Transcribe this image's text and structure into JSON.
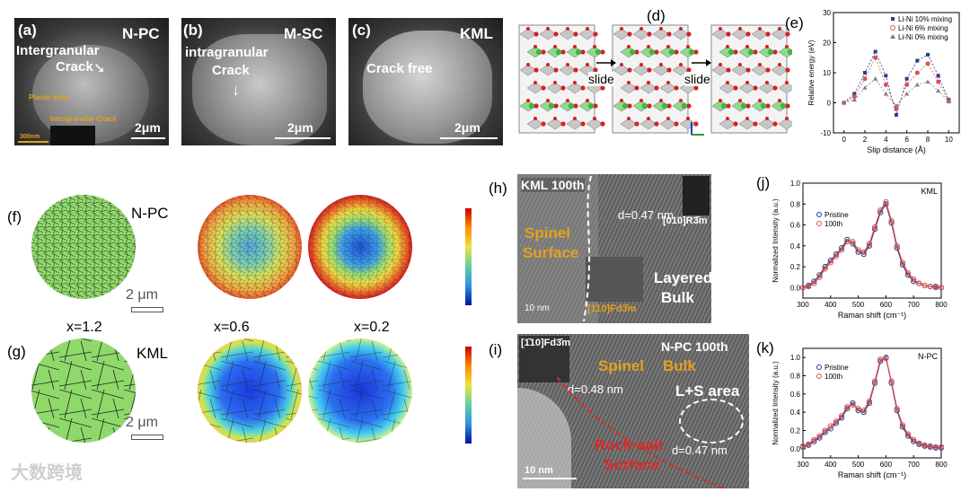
{
  "panel_a": {
    "letter": "(a)",
    "tag": "N-PC",
    "crack": "Intergranular",
    "crack2": "Crack",
    "planar": "Planar slide",
    "intra": "Intragranular Crack",
    "scale_small": "300nm",
    "scale": "2μm"
  },
  "panel_b": {
    "letter": "(b)",
    "tag": "M-SC",
    "crack": "intragranular",
    "crack2": "Crack",
    "scale": "2μm"
  },
  "panel_c": {
    "letter": "(c)",
    "tag": "KML",
    "crack": "Crack free",
    "scale": "2μm"
  },
  "panel_d": {
    "letter": "(d)",
    "slide1": "slide",
    "slide2": "slide"
  },
  "panel_e": {
    "letter": "(e)",
    "ylabel": "Relative energy (eV)",
    "xlabel": "Slip distance (Å)"
  },
  "panel_f": {
    "letter": "(f)",
    "tag": "N-PC",
    "scale": "2 μm"
  },
  "panel_g": {
    "letter": "(g)",
    "tag": "KML",
    "scale": "2 μm"
  },
  "x_labels": [
    "x=1.2",
    "x=0.6",
    "x=0.2"
  ],
  "panel_h": {
    "letter": "(h)",
    "title": "KML 100th",
    "spinel1": "Spinel",
    "spinel2": "Surface",
    "layered1": "Layered",
    "layered2": "Bulk",
    "d": "d=0.47 nm",
    "fft1": "[010]R3̄m",
    "fft2": "[110]Fd3̄m",
    "scale": "10 nm"
  },
  "panel_i": {
    "letter": "(i)",
    "title": "N-PC 100th",
    "spinel": "Spinel",
    "bulk": "Bulk",
    "ls": "L+S area",
    "d1": "d=0.48 nm",
    "d2": "d=0.47 nm",
    "rock1": "Rock-salt",
    "rock2": "Surface",
    "fft": "[1̄10]Fd3̄m",
    "scale": "10 nm"
  },
  "panel_j": {
    "letter": "(j)",
    "tag": "KML",
    "ylabel": "Normalized Intensity (a.u.)",
    "xlabel": "Raman shift (cm⁻¹)"
  },
  "panel_k": {
    "letter": "(k)",
    "tag": "N-PC",
    "ylabel": "Normalized Intensity (a.u.)",
    "xlabel": "Raman shift (cm⁻¹)"
  },
  "watermark": "大数跨境",
  "chart_data": [
    {
      "id": "e",
      "type": "line",
      "xlabel": "Slip distance (Å)",
      "ylabel": "Relative energy (eV)",
      "xlim": [
        -1,
        11
      ],
      "ylim": [
        -10,
        30
      ],
      "xticks": [
        0,
        2,
        4,
        6,
        8,
        10
      ],
      "yticks": [
        -10,
        0,
        10,
        20,
        30
      ],
      "legend_position": "top-right",
      "x": [
        0,
        1,
        2,
        3,
        4,
        5,
        6,
        7,
        8,
        9,
        10
      ],
      "series": [
        {
          "name": "Li-Ni 10% mixing",
          "color": "#2b3b8f",
          "marker": "square",
          "values": [
            0,
            3,
            10,
            17,
            9,
            -4,
            8,
            14,
            16,
            9,
            1
          ]
        },
        {
          "name": "Li-Ni 6% mixing",
          "color": "#d9534f",
          "marker": "circle",
          "values": [
            0,
            2,
            8,
            15,
            6,
            -2,
            6,
            10,
            13,
            7,
            0.5
          ]
        },
        {
          "name": "Li-Ni 0% mixing",
          "color": "#7f7f7f",
          "marker": "triangle",
          "values": [
            0,
            1,
            5,
            8,
            3,
            -1,
            3,
            6,
            7,
            4,
            0.5
          ]
        }
      ]
    },
    {
      "id": "j",
      "type": "scatter",
      "tag": "KML",
      "xlabel": "Raman shift (cm⁻¹)",
      "ylabel": "Normalized Intensity (a.u.)",
      "xlim": [
        300,
        800
      ],
      "ylim": [
        -0.1,
        1.0
      ],
      "xticks": [
        300,
        400,
        500,
        600,
        700,
        800
      ],
      "yticks": [
        0.0,
        0.2,
        0.4,
        0.6,
        0.8,
        1.0
      ],
      "legend_position": "top-left",
      "x": [
        300,
        320,
        340,
        360,
        380,
        400,
        420,
        440,
        460,
        480,
        500,
        520,
        540,
        560,
        580,
        600,
        620,
        640,
        660,
        680,
        700,
        720,
        740,
        760,
        780,
        800
      ],
      "series": [
        {
          "name": "Pristine",
          "color": "#2b3b8f",
          "values": [
            0.0,
            0.02,
            0.06,
            0.12,
            0.2,
            0.26,
            0.32,
            0.38,
            0.46,
            0.42,
            0.34,
            0.32,
            0.4,
            0.56,
            0.72,
            0.8,
            0.62,
            0.38,
            0.22,
            0.12,
            0.06,
            0.04,
            0.02,
            0.01,
            0.01,
            0.0
          ]
        },
        {
          "name": "100th",
          "color": "#d9534f",
          "values": [
            0.0,
            0.01,
            0.04,
            0.1,
            0.18,
            0.24,
            0.3,
            0.36,
            0.44,
            0.44,
            0.36,
            0.34,
            0.42,
            0.58,
            0.74,
            0.82,
            0.64,
            0.4,
            0.24,
            0.14,
            0.08,
            0.04,
            0.02,
            0.01,
            0.0,
            0.0
          ]
        }
      ]
    },
    {
      "id": "k",
      "type": "scatter",
      "tag": "N-PC",
      "xlabel": "Raman shift (cm⁻¹)",
      "ylabel": "Normalized Intensity (a.u.)",
      "xlim": [
        300,
        800
      ],
      "ylim": [
        -0.1,
        1.1
      ],
      "xticks": [
        300,
        400,
        500,
        600,
        700,
        800
      ],
      "yticks": [
        0.0,
        0.2,
        0.4,
        0.6,
        0.8,
        1.0
      ],
      "legend_position": "top-left",
      "x": [
        300,
        320,
        340,
        360,
        380,
        400,
        420,
        440,
        460,
        480,
        500,
        520,
        540,
        560,
        580,
        600,
        620,
        640,
        660,
        680,
        700,
        720,
        740,
        760,
        780,
        800
      ],
      "series": [
        {
          "name": "Pristine",
          "color": "#2b3b8f",
          "values": [
            0.02,
            0.04,
            0.08,
            0.12,
            0.18,
            0.22,
            0.28,
            0.34,
            0.44,
            0.5,
            0.42,
            0.4,
            0.5,
            0.72,
            0.96,
            1.0,
            0.72,
            0.42,
            0.24,
            0.14,
            0.08,
            0.05,
            0.03,
            0.02,
            0.01,
            0.01
          ]
        },
        {
          "name": "100th",
          "color": "#d9534f",
          "values": [
            0.03,
            0.05,
            0.1,
            0.14,
            0.2,
            0.25,
            0.3,
            0.36,
            0.46,
            0.48,
            0.44,
            0.42,
            0.52,
            0.74,
            0.98,
            0.99,
            0.74,
            0.44,
            0.26,
            0.16,
            0.1,
            0.06,
            0.04,
            0.03,
            0.02,
            0.02
          ]
        }
      ]
    }
  ]
}
